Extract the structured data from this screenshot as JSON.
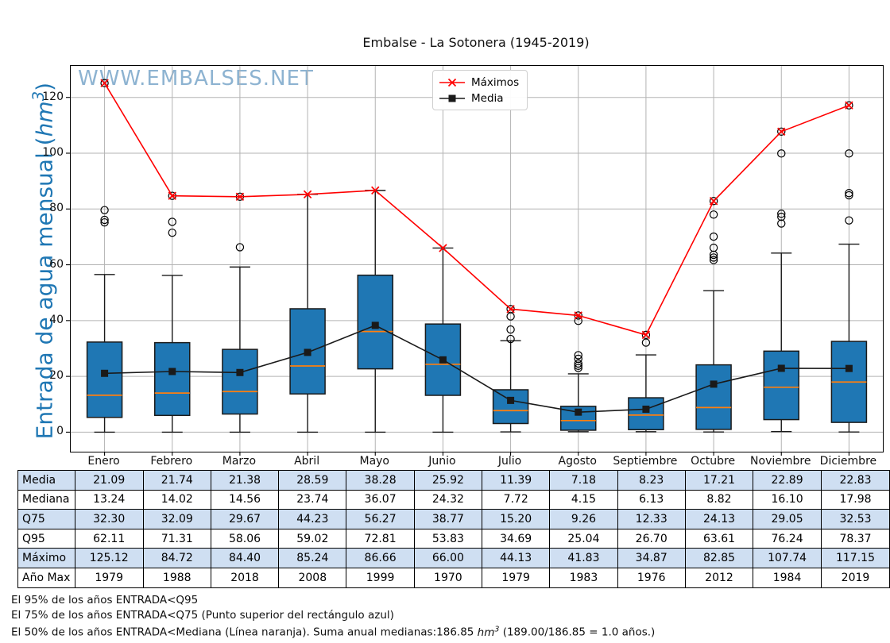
{
  "title": "Embalse - La Sotonera (1945-2019)",
  "watermark": "WWW.EMBALSES.NET",
  "axis": {
    "ylabel_pre": "Entrada de agua mensual (",
    "ylabel_unit": "hm",
    "ylabel_sup": "3",
    "ylabel_post": ")",
    "yticks": [
      0,
      20,
      40,
      60,
      80,
      100,
      120
    ],
    "ylim": [
      -7,
      131.3
    ]
  },
  "legend": {
    "items": [
      {
        "label": "Máximos"
      },
      {
        "label": "Media"
      }
    ]
  },
  "colors": {
    "box_fill": "#1f77b4",
    "box_edge": "#1a1a1a",
    "median_line": "#ff7f0e",
    "max_line": "#ff0000",
    "media_line": "#1a1a1a",
    "grid": "#b3b3b3",
    "watermark": "#7aa6ca",
    "ylabel": "#1f77b4",
    "table_band": "#cfdff2",
    "table_white": "#ffffff"
  },
  "chart_data": {
    "type": "boxplot-with-lines",
    "categories": [
      "Enero",
      "Febrero",
      "Marzo",
      "Abril",
      "Mayo",
      "Junio",
      "Julio",
      "Agosto",
      "Septiembre",
      "Octubre",
      "Noviembre",
      "Diciembre"
    ],
    "series": [
      {
        "name": "Máximos",
        "marker": "x",
        "values": [
          125.12,
          84.72,
          84.4,
          85.24,
          86.66,
          66.0,
          44.13,
          41.83,
          34.87,
          82.85,
          107.74,
          117.15
        ]
      },
      {
        "name": "Media",
        "marker": "square",
        "values": [
          21.09,
          21.74,
          21.38,
          28.59,
          38.28,
          25.92,
          11.39,
          7.18,
          8.23,
          17.21,
          22.89,
          22.83
        ]
      }
    ],
    "boxes": {
      "median": [
        13.24,
        14.02,
        14.56,
        23.74,
        36.07,
        24.32,
        7.72,
        4.15,
        6.13,
        8.82,
        16.1,
        17.98
      ],
      "q25": [
        5.3,
        6.0,
        6.5,
        13.7,
        22.7,
        13.2,
        3.1,
        0.7,
        0.9,
        1.0,
        4.5,
        3.5
      ],
      "q75": [
        32.3,
        32.09,
        29.67,
        44.23,
        56.27,
        38.77,
        15.2,
        9.26,
        12.33,
        24.13,
        29.05,
        32.53
      ],
      "whisker_low": [
        0,
        0,
        0,
        0,
        0,
        0,
        0.1,
        0.15,
        0.15,
        0.05,
        0.2,
        0.05
      ],
      "whisker_high": [
        56.5,
        56.2,
        59.2,
        85.24,
        86.66,
        66.0,
        32.8,
        20.9,
        27.7,
        50.7,
        64.2,
        67.4
      ],
      "outliers": [
        [
          125.12,
          79.6,
          76.1,
          75.2
        ],
        [
          84.72,
          75.4,
          71.5
        ],
        [
          84.4,
          66.3
        ],
        [],
        [],
        [],
        [
          44.13,
          41.5,
          36.8,
          33.4
        ],
        [
          41.83,
          39.9,
          27.6,
          26.3,
          24.6,
          23.8,
          23.0
        ],
        [
          34.87,
          32.1
        ],
        [
          82.85,
          78.0,
          70.1,
          66.1,
          63.6,
          62.6,
          61.7
        ],
        [
          107.74,
          99.9,
          78.3,
          77.2,
          74.8
        ],
        [
          117.15,
          99.9,
          85.7,
          84.9,
          75.9
        ]
      ]
    },
    "title": "Embalse - La Sotonera (1945-2019)",
    "xlabel": "",
    "ylabel": "Entrada de agua mensual (hm3)",
    "ylim": [
      -7,
      131.3
    ],
    "grid": true,
    "legend_position": "top-center"
  },
  "table": {
    "rows": [
      {
        "label": "Media",
        "values": [
          "21.09",
          "21.74",
          "21.38",
          "28.59",
          "38.28",
          "25.92",
          "11.39",
          "7.18",
          "8.23",
          "17.21",
          "22.89",
          "22.83"
        ]
      },
      {
        "label": "Mediana",
        "values": [
          "13.24",
          "14.02",
          "14.56",
          "23.74",
          "36.07",
          "24.32",
          "7.72",
          "4.15",
          "6.13",
          "8.82",
          "16.10",
          "17.98"
        ]
      },
      {
        "label": "Q75",
        "values": [
          "32.30",
          "32.09",
          "29.67",
          "44.23",
          "56.27",
          "38.77",
          "15.20",
          "9.26",
          "12.33",
          "24.13",
          "29.05",
          "32.53"
        ]
      },
      {
        "label": "Q95",
        "values": [
          "62.11",
          "71.31",
          "58.06",
          "59.02",
          "72.81",
          "53.83",
          "34.69",
          "25.04",
          "26.70",
          "63.61",
          "76.24",
          "78.37"
        ]
      },
      {
        "label": "Máximo",
        "values": [
          "125.12",
          "84.72",
          "84.40",
          "85.24",
          "86.66",
          "66.00",
          "44.13",
          "41.83",
          "34.87",
          "82.85",
          "107.74",
          "117.15"
        ]
      },
      {
        "label": "Año Max",
        "values": [
          "1979",
          "1988",
          "2018",
          "2008",
          "1999",
          "1970",
          "1979",
          "1983",
          "1976",
          "2012",
          "1984",
          "2019"
        ]
      }
    ]
  },
  "footnotes": {
    "line1": "El 95% de los años ENTRADA<Q95",
    "line2": "El 75% de los años ENTRADA<Q75 (Punto superior del rectángulo azul)",
    "line3_pre": "El 50% de los años ENTRADA<Mediana (Línea naranja). Suma anual medianas:186.85 ",
    "line3_unit": "hm",
    "line3_sup": "3",
    "line3_post": " (189.00/186.85 = 1.0 años.)"
  }
}
